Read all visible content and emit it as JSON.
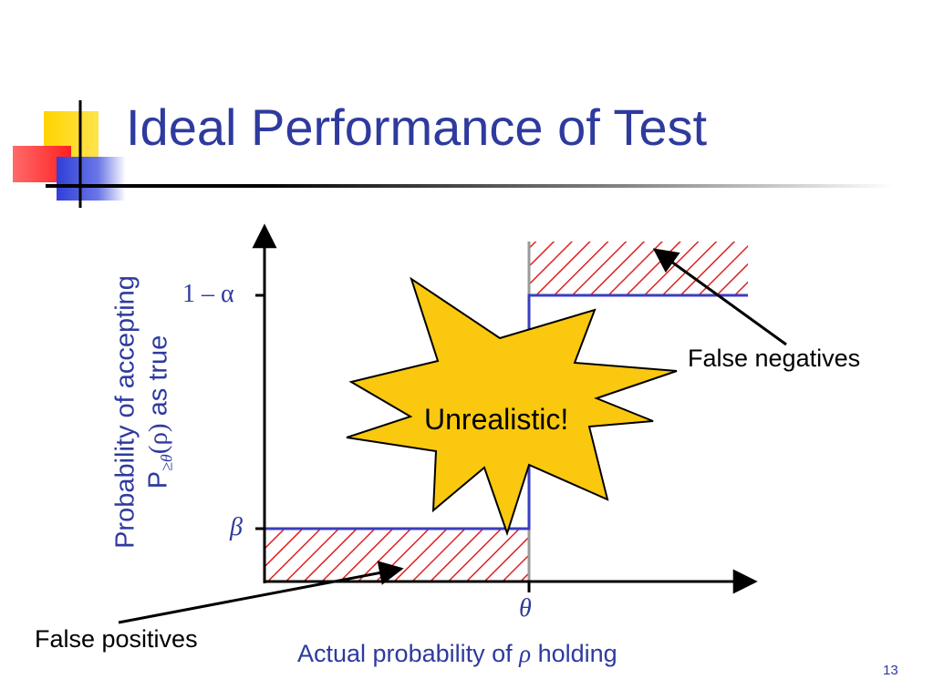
{
  "slide": {
    "title": "Ideal Performance of Test",
    "page_number": "13"
  },
  "diagram": {
    "y_axis_label_line1": "Probability of accepting",
    "y_axis_label_line2_prefix": "P",
    "y_axis_label_line2_subscript": "≥θ",
    "y_axis_label_line2_arg": "(ρ)",
    "y_axis_label_line2_suffix": " as true",
    "y_tick_high": "1 – α",
    "y_tick_low": "β",
    "x_tick": "θ",
    "x_axis_label_prefix": "Actual probability of ",
    "x_axis_label_symbol": "ρ",
    "x_axis_label_suffix": " holding",
    "callout_false_negatives": "False negatives",
    "callout_false_positives": "False positives",
    "burst_text": "Unrealistic!",
    "colors": {
      "curve": "#3a3dbf",
      "hatch": "#e02020",
      "burst_fill": "#f9c80f",
      "title": "#2e3a9e"
    }
  }
}
